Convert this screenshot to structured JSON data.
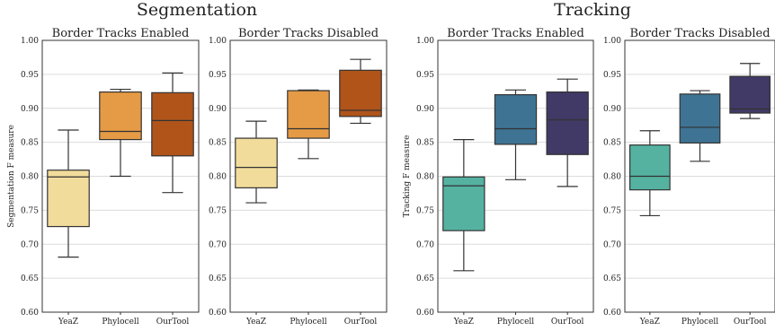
{
  "figures": [
    {
      "title": "Segmentation"
    },
    {
      "title": "Tracking"
    }
  ],
  "chart_data": [
    {
      "type": "box",
      "group": "Segmentation",
      "title": "Border Tracks Enabled",
      "ylabel": "Segmentation F measure",
      "ylim": [
        0.6,
        1.0
      ],
      "yticks": [
        "0.60",
        "0.65",
        "0.70",
        "0.75",
        "0.80",
        "0.85",
        "0.90",
        "0.95",
        "1.00"
      ],
      "grid": true,
      "categories": [
        "YeaZ",
        "Phylocell",
        "OurTool"
      ],
      "colors": [
        "#f2dc9c",
        "#e59a45",
        "#b0541a"
      ],
      "boxes": [
        {
          "min": 0.681,
          "q1": 0.726,
          "median": 0.799,
          "q3": 0.809,
          "max": 0.868
        },
        {
          "min": 0.8,
          "q1": 0.854,
          "median": 0.866,
          "q3": 0.924,
          "max": 0.928
        },
        {
          "min": 0.776,
          "q1": 0.83,
          "median": 0.882,
          "q3": 0.923,
          "max": 0.952
        }
      ]
    },
    {
      "type": "box",
      "group": "Segmentation",
      "title": "Border Tracks Disabled",
      "ylabel": "",
      "ylim": [
        0.6,
        1.0
      ],
      "yticks": [
        "0.60",
        "0.65",
        "0.70",
        "0.75",
        "0.80",
        "0.85",
        "0.90",
        "0.95",
        "1.00"
      ],
      "grid": true,
      "categories": [
        "YeaZ",
        "Phylocell",
        "OurTool"
      ],
      "colors": [
        "#f2dc9c",
        "#e59a45",
        "#b0541a"
      ],
      "boxes": [
        {
          "min": 0.761,
          "q1": 0.783,
          "median": 0.813,
          "q3": 0.856,
          "max": 0.881
        },
        {
          "min": 0.826,
          "q1": 0.856,
          "median": 0.87,
          "q3": 0.926,
          "max": 0.927
        },
        {
          "min": 0.878,
          "q1": 0.888,
          "median": 0.897,
          "q3": 0.956,
          "max": 0.972
        }
      ]
    },
    {
      "type": "box",
      "group": "Tracking",
      "title": "Border Tracks Enabled",
      "ylabel": "Tracking F measure",
      "ylim": [
        0.6,
        1.0
      ],
      "yticks": [
        "0.60",
        "0.65",
        "0.70",
        "0.75",
        "0.80",
        "0.85",
        "0.90",
        "0.95",
        "1.00"
      ],
      "grid": true,
      "categories": [
        "YeaZ",
        "Phylocell",
        "OurTool"
      ],
      "colors": [
        "#55b2a1",
        "#3e7393",
        "#413a66"
      ],
      "boxes": [
        {
          "min": 0.661,
          "q1": 0.72,
          "median": 0.786,
          "q3": 0.799,
          "max": 0.854
        },
        {
          "min": 0.795,
          "q1": 0.847,
          "median": 0.87,
          "q3": 0.92,
          "max": 0.927
        },
        {
          "min": 0.785,
          "q1": 0.832,
          "median": 0.883,
          "q3": 0.924,
          "max": 0.943
        }
      ]
    },
    {
      "type": "box",
      "group": "Tracking",
      "title": "Border Tracks Disabled",
      "ylabel": "",
      "ylim": [
        0.6,
        1.0
      ],
      "yticks": [
        "0.60",
        "0.65",
        "0.70",
        "0.75",
        "0.80",
        "0.85",
        "0.90",
        "0.95",
        "1.00"
      ],
      "grid": true,
      "categories": [
        "YeaZ",
        "Phylocell",
        "OurTool"
      ],
      "colors": [
        "#55b2a1",
        "#3e7393",
        "#413a66"
      ],
      "boxes": [
        {
          "min": 0.742,
          "q1": 0.78,
          "median": 0.8,
          "q3": 0.846,
          "max": 0.867
        },
        {
          "min": 0.822,
          "q1": 0.849,
          "median": 0.872,
          "q3": 0.921,
          "max": 0.926
        },
        {
          "min": 0.885,
          "q1": 0.893,
          "median": 0.899,
          "q3": 0.947,
          "max": 0.966
        }
      ]
    }
  ]
}
